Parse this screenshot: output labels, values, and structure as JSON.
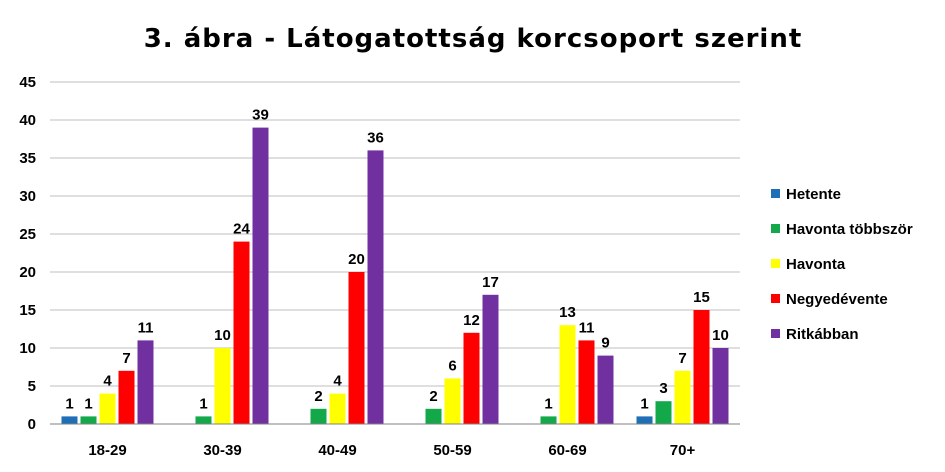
{
  "chart_data": {
    "type": "bar",
    "title": "3. ábra - Látogatottság korcsoport szerint",
    "categories": [
      "18-29",
      "30-39",
      "40-49",
      "50-59",
      "60-69",
      "70+"
    ],
    "ylim": [
      0,
      45
    ],
    "yticks": [
      0,
      5,
      10,
      15,
      20,
      25,
      30,
      35,
      40,
      45
    ],
    "grid": true,
    "legend_position": "right",
    "series": [
      {
        "name": "Hetente",
        "color": "#1f6fb6",
        "values": [
          1,
          null,
          null,
          null,
          null,
          1
        ]
      },
      {
        "name": "Havonta többször",
        "color": "#13a84a",
        "values": [
          1,
          1,
          2,
          2,
          1,
          3
        ]
      },
      {
        "name": "Havonta",
        "color": "#ffff00",
        "values": [
          4,
          10,
          4,
          6,
          13,
          7
        ]
      },
      {
        "name": "Negyedévente",
        "color": "#ff0000",
        "values": [
          7,
          24,
          20,
          12,
          11,
          15
        ]
      },
      {
        "name": "Ritkábban",
        "color": "#7030a0",
        "values": [
          11,
          39,
          36,
          17,
          9,
          10
        ]
      }
    ]
  }
}
